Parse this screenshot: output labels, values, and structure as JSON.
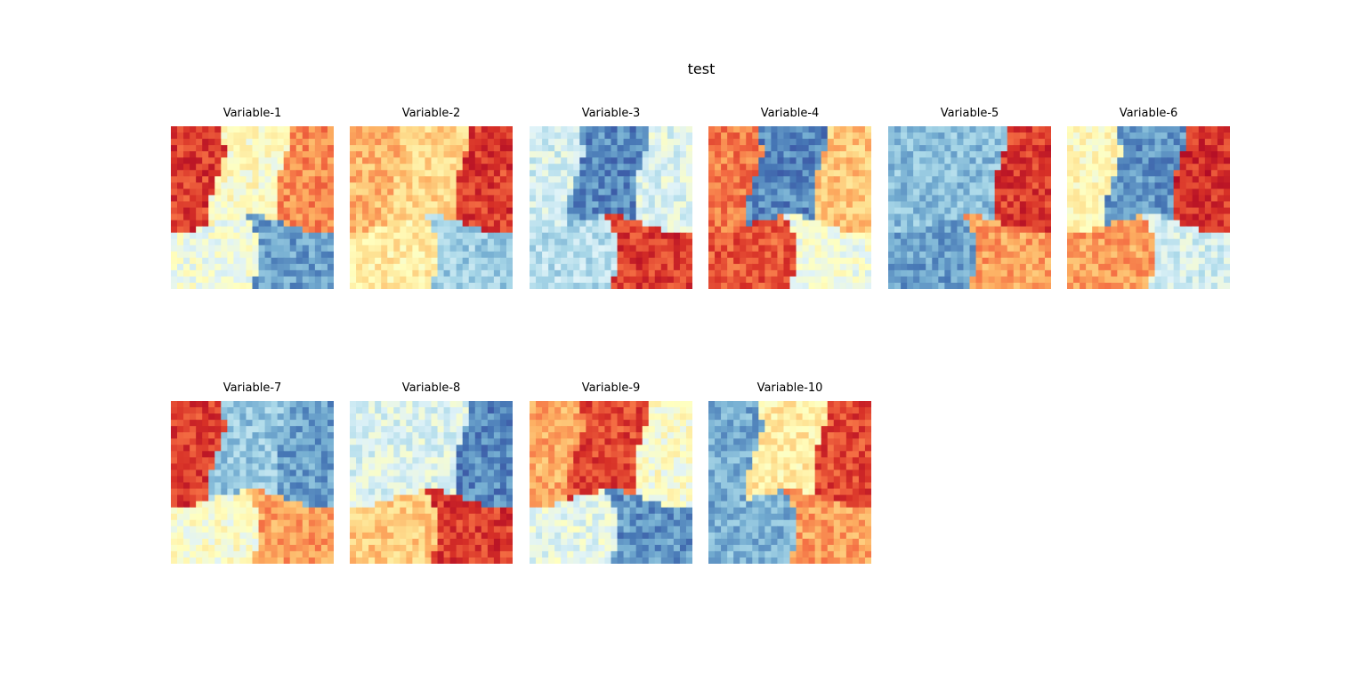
{
  "chart_data": {
    "type": "heatmap",
    "title": "test",
    "colormap": "RdYlBu",
    "colormap_stops": [
      "#a50026",
      "#d73027",
      "#f46d43",
      "#fdae61",
      "#fee090",
      "#ffffbf",
      "#e0f3f8",
      "#abd9e9",
      "#74add1",
      "#4575b4",
      "#313695"
    ],
    "grid": false,
    "panels": [
      {
        "title": "Variable-1",
        "clusters": {
          "top_left": 0.12,
          "top_middle": 0.5,
          "top_right": 0.25,
          "bottom_left": 0.55,
          "bottom_right": 0.82
        }
      },
      {
        "title": "Variable-2",
        "clusters": {
          "top_left": 0.32,
          "top_middle": 0.38,
          "top_right": 0.12,
          "bottom_left": 0.44,
          "bottom_right": 0.72
        }
      },
      {
        "title": "Variable-3",
        "clusters": {
          "top_left": 0.62,
          "top_middle": 0.86,
          "top_right": 0.6,
          "bottom_left": 0.68,
          "bottom_right": 0.12
        }
      },
      {
        "title": "Variable-4",
        "clusters": {
          "top_left": 0.22,
          "top_middle": 0.86,
          "top_right": 0.35,
          "bottom_left": 0.16,
          "bottom_right": 0.55
        }
      },
      {
        "title": "Variable-5",
        "clusters": {
          "top_left": 0.76,
          "top_middle": 0.76,
          "top_right": 0.12,
          "bottom_left": 0.82,
          "bottom_right": 0.28
        }
      },
      {
        "title": "Variable-6",
        "clusters": {
          "top_left": 0.48,
          "top_middle": 0.84,
          "top_right": 0.1,
          "bottom_left": 0.28,
          "bottom_right": 0.62
        }
      },
      {
        "title": "Variable-7",
        "clusters": {
          "top_left": 0.12,
          "top_middle": 0.74,
          "top_right": 0.82,
          "bottom_left": 0.52,
          "bottom_right": 0.28
        }
      },
      {
        "title": "Variable-8",
        "clusters": {
          "top_left": 0.6,
          "top_middle": 0.6,
          "top_right": 0.86,
          "bottom_left": 0.36,
          "bottom_right": 0.12
        }
      },
      {
        "title": "Variable-9",
        "clusters": {
          "top_left": 0.3,
          "top_middle": 0.14,
          "top_right": 0.52,
          "bottom_left": 0.58,
          "bottom_right": 0.84
        }
      },
      {
        "title": "Variable-10",
        "clusters": {
          "top_left": 0.8,
          "top_middle": 0.44,
          "top_right": 0.14,
          "bottom_left": 0.78,
          "bottom_right": 0.28
        }
      }
    ]
  }
}
